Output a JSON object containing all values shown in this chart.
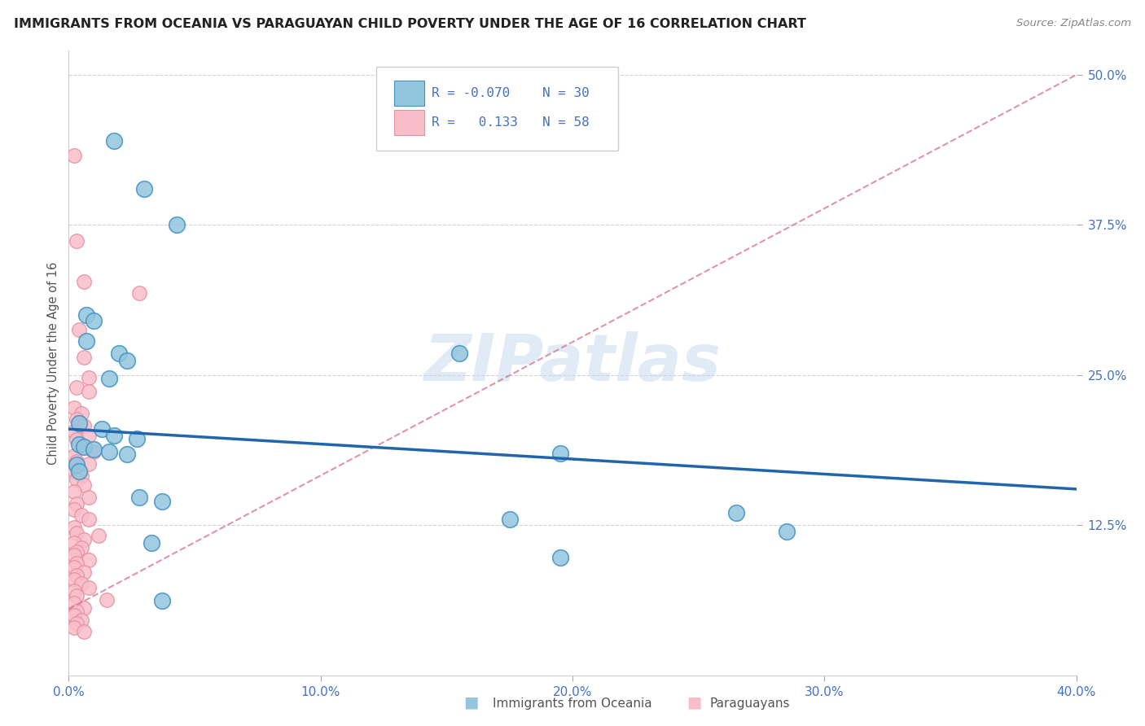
{
  "title": "IMMIGRANTS FROM OCEANIA VS PARAGUAYAN CHILD POVERTY UNDER THE AGE OF 16 CORRELATION CHART",
  "source": "Source: ZipAtlas.com",
  "ylabel": "Child Poverty Under the Age of 16",
  "ytick_labels": [
    "12.5%",
    "25.0%",
    "37.5%",
    "50.0%"
  ],
  "ytick_values": [
    0.125,
    0.25,
    0.375,
    0.5
  ],
  "xtick_labels": [
    "0.0%",
    "10.0%",
    "20.0%",
    "30.0%",
    "40.0%"
  ],
  "xtick_values": [
    0.0,
    0.1,
    0.2,
    0.3,
    0.4
  ],
  "xlim": [
    0.0,
    0.4
  ],
  "ylim": [
    0.0,
    0.52
  ],
  "legend_r1": "R = -0.070",
  "legend_n1": "N = 30",
  "legend_r2": "R =   0.133",
  "legend_n2": "N = 58",
  "blue_color": "#92C5DE",
  "pink_color": "#F9BDCA",
  "blue_edge_color": "#4393C3",
  "pink_edge_color": "#E8909E",
  "blue_line_color": "#2166AC",
  "pink_line_color": "#D6728A",
  "watermark_text": "ZIPatlas",
  "blue_line_x": [
    0.0,
    0.4
  ],
  "blue_line_y": [
    0.205,
    0.155
  ],
  "pink_line_x": [
    0.0,
    0.4
  ],
  "pink_line_y": [
    0.055,
    0.5
  ],
  "blue_scatter": [
    [
      0.018,
      0.445
    ],
    [
      0.03,
      0.405
    ],
    [
      0.043,
      0.375
    ],
    [
      0.007,
      0.3
    ],
    [
      0.01,
      0.295
    ],
    [
      0.007,
      0.278
    ],
    [
      0.02,
      0.268
    ],
    [
      0.023,
      0.262
    ],
    [
      0.016,
      0.247
    ],
    [
      0.155,
      0.268
    ],
    [
      0.004,
      0.21
    ],
    [
      0.013,
      0.205
    ],
    [
      0.018,
      0.2
    ],
    [
      0.027,
      0.197
    ],
    [
      0.004,
      0.192
    ],
    [
      0.006,
      0.19
    ],
    [
      0.01,
      0.188
    ],
    [
      0.016,
      0.186
    ],
    [
      0.023,
      0.184
    ],
    [
      0.003,
      0.175
    ],
    [
      0.004,
      0.17
    ],
    [
      0.028,
      0.148
    ],
    [
      0.037,
      0.145
    ],
    [
      0.195,
      0.185
    ],
    [
      0.175,
      0.13
    ],
    [
      0.265,
      0.135
    ],
    [
      0.033,
      0.11
    ],
    [
      0.285,
      0.12
    ],
    [
      0.195,
      0.098
    ],
    [
      0.037,
      0.062
    ]
  ],
  "pink_scatter": [
    [
      0.002,
      0.433
    ],
    [
      0.003,
      0.362
    ],
    [
      0.006,
      0.328
    ],
    [
      0.028,
      0.318
    ],
    [
      0.004,
      0.288
    ],
    [
      0.006,
      0.265
    ],
    [
      0.008,
      0.248
    ],
    [
      0.003,
      0.24
    ],
    [
      0.008,
      0.236
    ],
    [
      0.002,
      0.223
    ],
    [
      0.005,
      0.218
    ],
    [
      0.003,
      0.213
    ],
    [
      0.006,
      0.208
    ],
    [
      0.002,
      0.203
    ],
    [
      0.008,
      0.2
    ],
    [
      0.003,
      0.196
    ],
    [
      0.006,
      0.19
    ],
    [
      0.01,
      0.186
    ],
    [
      0.002,
      0.183
    ],
    [
      0.003,
      0.178
    ],
    [
      0.008,
      0.176
    ],
    [
      0.002,
      0.17
    ],
    [
      0.005,
      0.166
    ],
    [
      0.003,
      0.163
    ],
    [
      0.006,
      0.158
    ],
    [
      0.002,
      0.153
    ],
    [
      0.008,
      0.148
    ],
    [
      0.003,
      0.143
    ],
    [
      0.002,
      0.138
    ],
    [
      0.005,
      0.133
    ],
    [
      0.008,
      0.13
    ],
    [
      0.002,
      0.123
    ],
    [
      0.003,
      0.118
    ],
    [
      0.012,
      0.116
    ],
    [
      0.006,
      0.113
    ],
    [
      0.002,
      0.11
    ],
    [
      0.005,
      0.106
    ],
    [
      0.003,
      0.103
    ],
    [
      0.002,
      0.1
    ],
    [
      0.008,
      0.096
    ],
    [
      0.003,
      0.093
    ],
    [
      0.002,
      0.09
    ],
    [
      0.006,
      0.086
    ],
    [
      0.003,
      0.083
    ],
    [
      0.002,
      0.08
    ],
    [
      0.005,
      0.076
    ],
    [
      0.008,
      0.073
    ],
    [
      0.002,
      0.07
    ],
    [
      0.003,
      0.066
    ],
    [
      0.015,
      0.063
    ],
    [
      0.002,
      0.06
    ],
    [
      0.006,
      0.056
    ],
    [
      0.003,
      0.053
    ],
    [
      0.002,
      0.05
    ],
    [
      0.005,
      0.046
    ],
    [
      0.003,
      0.043
    ],
    [
      0.002,
      0.04
    ],
    [
      0.006,
      0.036
    ]
  ]
}
